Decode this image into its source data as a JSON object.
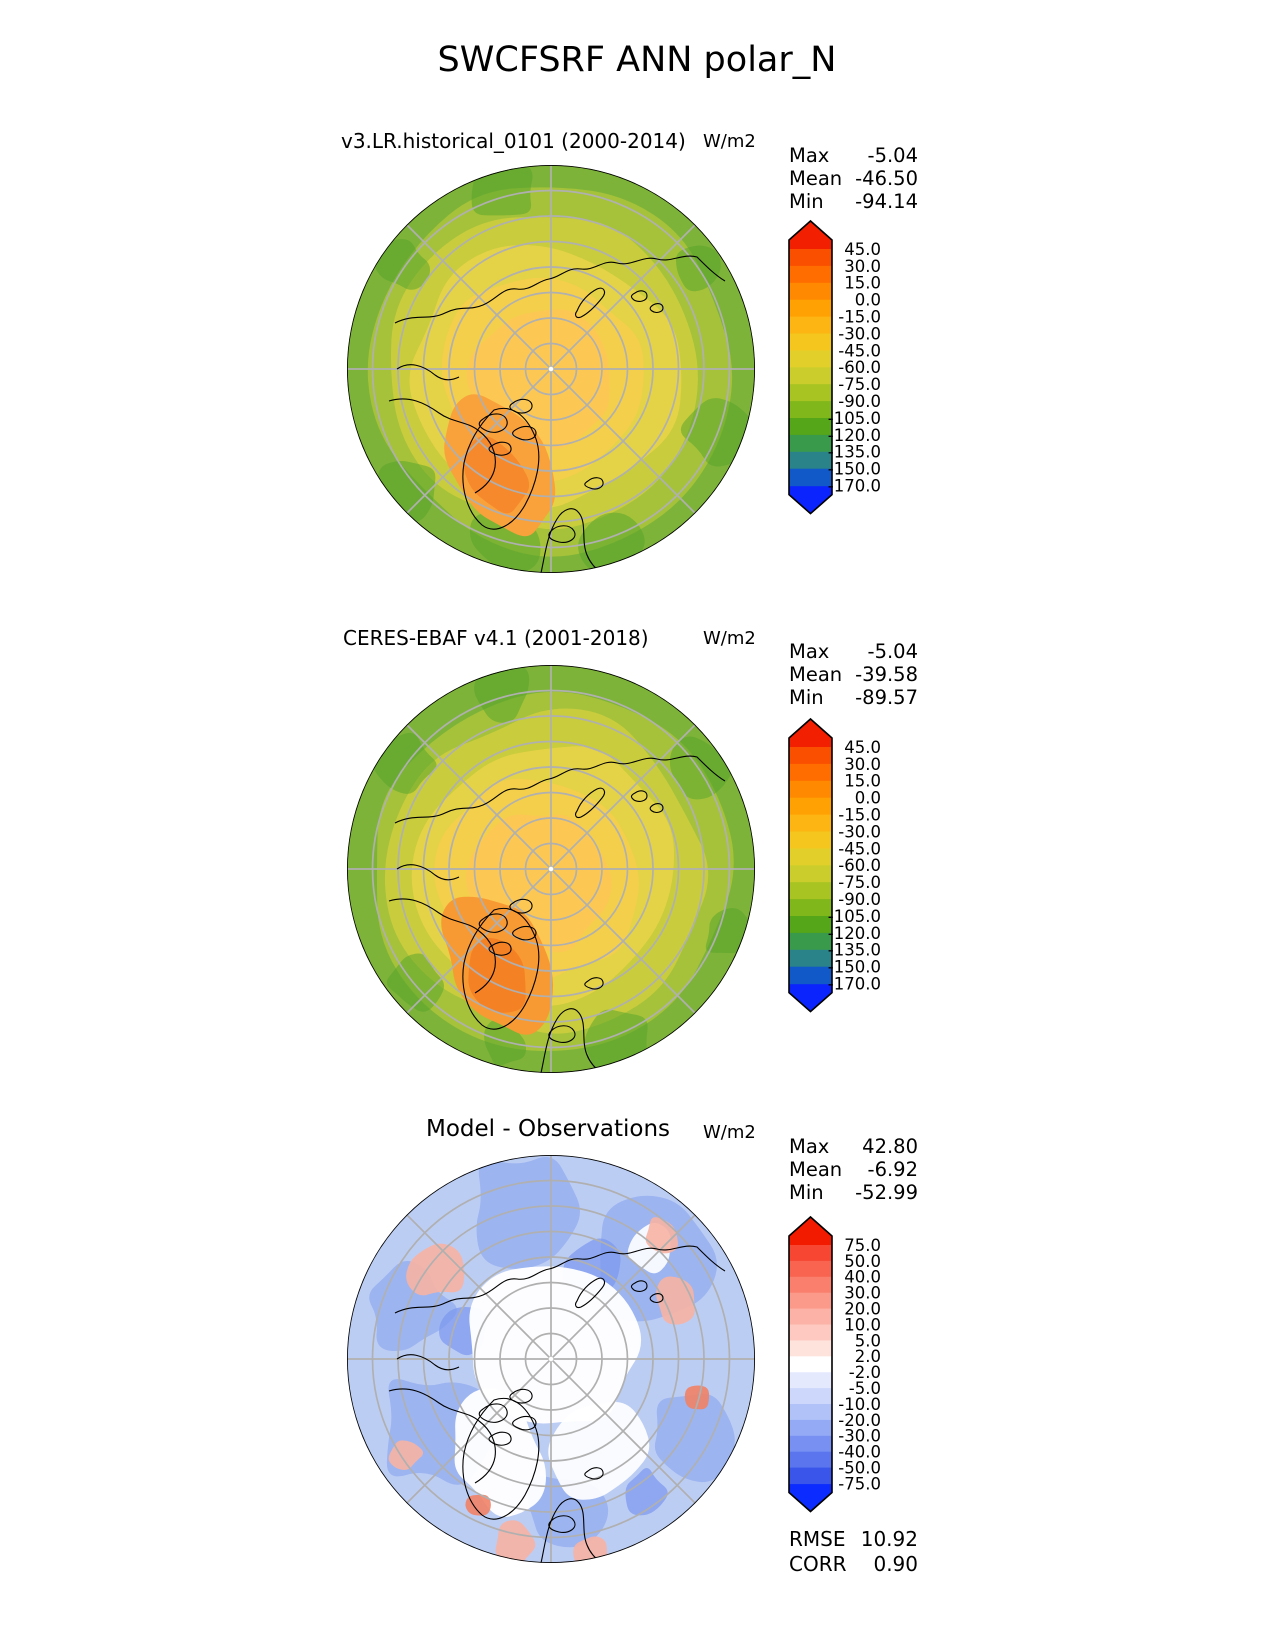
{
  "title": "SWCFSRF ANN polar_N",
  "colors": {
    "background": "#ffffff",
    "graticule": "#b0b0b0",
    "coastline": "#000000",
    "map_outline": "#000000",
    "text": "#000000"
  },
  "panels": [
    {
      "name": "model",
      "title": "v3.LR.historical_0101 (2000-2014)",
      "units": "W/m2",
      "stats": [
        {
          "label": "Max",
          "value": "-5.04"
        },
        {
          "label": "Mean",
          "value": "-46.50"
        },
        {
          "label": "Min",
          "value": "-94.14"
        }
      ],
      "colorbar": {
        "ticks": [
          "45.0",
          "30.0",
          "15.0",
          "0.0",
          "-15.0",
          "-30.0",
          "-45.0",
          "-60.0",
          "-75.0",
          "-90.0",
          "-105.0",
          "-120.0",
          "-135.0",
          "-150.0",
          "-170.0"
        ],
        "segment_colors": [
          "#f21f00",
          "#fb4f00",
          "#ff6c00",
          "#ff8900",
          "#ffa103",
          "#fdb513",
          "#f4c61e",
          "#e3cf29",
          "#cbcd2c",
          "#a8c423",
          "#80b71b",
          "#55a618",
          "#3a9a4c",
          "#2a8389",
          "#1158c8",
          "#0b24fe"
        ]
      },
      "map_palette": {
        "outer": "#7eb339",
        "ring1": "#a5c23a",
        "ring2": "#c8cc3d",
        "ring3": "#e4d247",
        "ring4": "#f4cf4b",
        "center": "#fcc853",
        "patch": "#54a42a",
        "land_warm": "#f9a23c",
        "land_core": "#f6892b"
      }
    },
    {
      "name": "observation",
      "title": "CERES-EBAF v4.1 (2001-2018)",
      "units": "W/m2",
      "stats": [
        {
          "label": "Max",
          "value": "-5.04"
        },
        {
          "label": "Mean",
          "value": "-39.58"
        },
        {
          "label": "Min",
          "value": "-89.57"
        }
      ],
      "colorbar": {
        "ticks": [
          "45.0",
          "30.0",
          "15.0",
          "0.0",
          "-15.0",
          "-30.0",
          "-45.0",
          "-60.0",
          "-75.0",
          "-90.0",
          "-105.0",
          "-120.0",
          "-135.0",
          "-150.0",
          "-170.0"
        ],
        "segment_colors": [
          "#f21f00",
          "#fb4f00",
          "#ff6c00",
          "#ff8900",
          "#ffa103",
          "#fdb513",
          "#f4c61e",
          "#e3cf29",
          "#cbcd2c",
          "#a8c423",
          "#80b71b",
          "#55a618",
          "#3a9a4c",
          "#2a8389",
          "#1158c8",
          "#0b24fe"
        ]
      },
      "map_palette": {
        "outer": "#7eb339",
        "ring1": "#a5c23a",
        "ring2": "#c8cc3d",
        "ring3": "#e4d247",
        "ring4": "#f4cf4b",
        "center": "#fcc853",
        "patch": "#54a42a",
        "land_warm": "#f89a33",
        "land_core": "#f58125"
      }
    },
    {
      "name": "difference",
      "title": "Model - Observations",
      "units": "W/m2",
      "stats": [
        {
          "label": "Max",
          "value": "42.80"
        },
        {
          "label": "Mean",
          "value": "-6.92"
        },
        {
          "label": "Min",
          "value": "-52.99"
        }
      ],
      "metrics": [
        {
          "label": "RMSE",
          "value": "10.92"
        },
        {
          "label": "CORR",
          "value": "0.90"
        }
      ],
      "colorbar": {
        "ticks": [
          "75.0",
          "50.0",
          "40.0",
          "30.0",
          "20.0",
          "10.0",
          "5.0",
          "2.0",
          "-2.0",
          "-5.0",
          "-10.0",
          "-20.0",
          "-30.0",
          "-40.0",
          "-50.0",
          "-75.0"
        ],
        "segment_colors": [
          "#f21b00",
          "#f74733",
          "#f96450",
          "#fa7f6d",
          "#fb9a8a",
          "#fcb2a6",
          "#fdc9c0",
          "#fee2dc",
          "#ffffff",
          "#e4e9fd",
          "#ccd7fb",
          "#b0c2f8",
          "#94aaf5",
          "#7790f2",
          "#5a75ee",
          "#3a55ea",
          "#0b2bff"
        ]
      },
      "map_palette": {
        "base": "#bccdf4",
        "mid": "#92abef",
        "deep": "#7b97ee",
        "white": "#ffffff",
        "pink": "#f7b3a3",
        "red": "#ef8266"
      }
    }
  ],
  "chart_data": [
    {
      "type": "map",
      "subtype": "polar_stereographic_north",
      "title": "v3.LR.historical_0101 (2000-2014)",
      "units": "W/m2",
      "stats": {
        "max": -5.04,
        "mean": -46.5,
        "min": -94.14
      },
      "colorbar_levels": [
        45.0,
        30.0,
        15.0,
        0.0,
        -15.0,
        -30.0,
        -45.0,
        -60.0,
        -75.0,
        -90.0,
        -105.0,
        -120.0,
        -135.0,
        -150.0,
        -170.0
      ],
      "colormap": "rainbow red(high) to blue(low), extended arrows both ends",
      "graticule": {
        "latitude_circles": 7,
        "meridian_spokes_every_deg": 45
      }
    },
    {
      "type": "map",
      "subtype": "polar_stereographic_north",
      "title": "CERES-EBAF v4.1 (2001-2018)",
      "units": "W/m2",
      "stats": {
        "max": -5.04,
        "mean": -39.58,
        "min": -89.57
      },
      "colorbar_levels": [
        45.0,
        30.0,
        15.0,
        0.0,
        -15.0,
        -30.0,
        -45.0,
        -60.0,
        -75.0,
        -90.0,
        -105.0,
        -120.0,
        -135.0,
        -150.0,
        -170.0
      ],
      "colormap": "rainbow red(high) to blue(low), extended arrows both ends",
      "graticule": {
        "latitude_circles": 7,
        "meridian_spokes_every_deg": 45
      }
    },
    {
      "type": "map",
      "subtype": "polar_stereographic_north",
      "title": "Model - Observations",
      "units": "W/m2",
      "stats": {
        "max": 42.8,
        "mean": -6.92,
        "min": -52.99,
        "rmse": 10.92,
        "corr": 0.9
      },
      "colorbar_levels": [
        75.0,
        50.0,
        40.0,
        30.0,
        20.0,
        10.0,
        5.0,
        2.0,
        -2.0,
        -5.0,
        -10.0,
        -20.0,
        -30.0,
        -40.0,
        -50.0,
        -75.0
      ],
      "colormap": "diverging red-white-blue, extended arrows both ends",
      "graticule": {
        "latitude_circles": 7,
        "meridian_spokes_every_deg": 45
      }
    }
  ]
}
